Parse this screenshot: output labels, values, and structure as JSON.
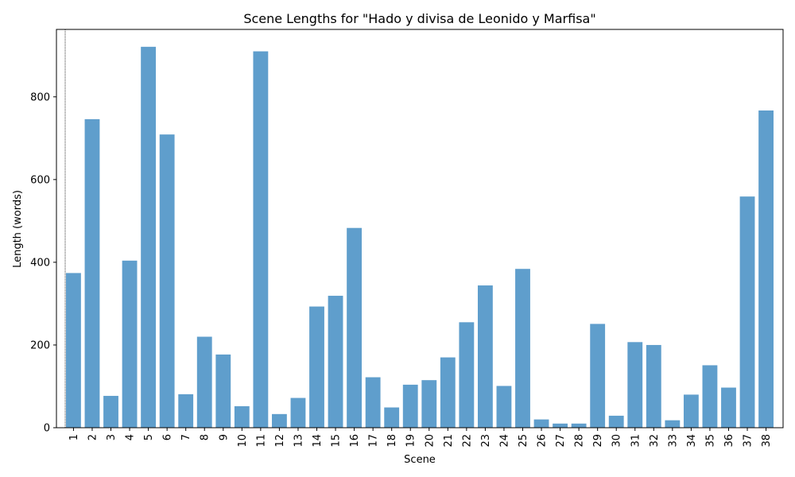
{
  "chart_data": {
    "type": "bar",
    "title": "Scene Lengths for \"Hado y divisa de Leonido y Marfisa\"",
    "xlabel": "Scene",
    "ylabel": "Length (words)",
    "ylim": [
      0,
      963
    ],
    "yticks": [
      0,
      200,
      400,
      600,
      800
    ],
    "grid": false,
    "bar_color": "#5f9ecc",
    "categories": [
      "1",
      "2",
      "3",
      "4",
      "5",
      "6",
      "7",
      "8",
      "9",
      "10",
      "11",
      "12",
      "13",
      "14",
      "15",
      "16",
      "17",
      "18",
      "19",
      "20",
      "21",
      "22",
      "23",
      "24",
      "25",
      "26",
      "27",
      "28",
      "29",
      "30",
      "31",
      "32",
      "33",
      "34",
      "35",
      "36",
      "37",
      "38"
    ],
    "values": [
      374,
      746,
      77,
      404,
      921,
      709,
      81,
      220,
      177,
      52,
      910,
      33,
      72,
      293,
      319,
      483,
      122,
      49,
      104,
      115,
      170,
      255,
      344,
      101,
      384,
      20,
      10,
      10,
      251,
      29,
      207,
      200,
      18,
      80,
      151,
      97,
      559,
      767
    ]
  }
}
